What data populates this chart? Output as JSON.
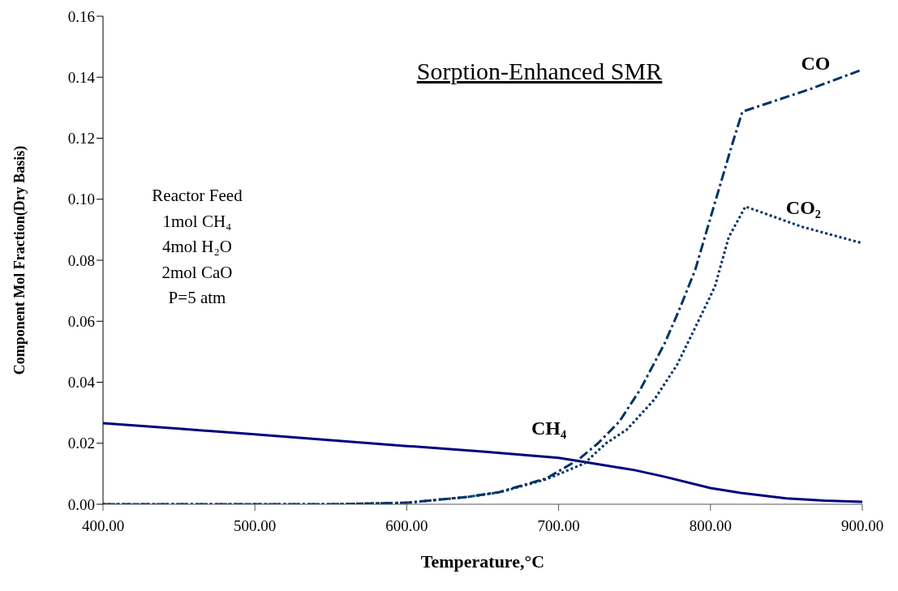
{
  "chart_data": {
    "type": "line",
    "title": "Sorption-Enhanced SMR",
    "xlabel": "Temperature,°C",
    "ylabel": "Component Mol Fraction(Dry Basis)",
    "annotations": [
      "Reactor Feed",
      "1mol CH₄",
      "4mol H₂O",
      "2mol CaO",
      "P=5 atm"
    ],
    "xlim": [
      400,
      900
    ],
    "xticks": [
      {
        "value": 400,
        "label": "400.00"
      },
      {
        "value": 500,
        "label": "500.00"
      },
      {
        "value": 600,
        "label": "600.00"
      },
      {
        "value": 700,
        "label": "700.00"
      },
      {
        "value": 800,
        "label": "800.00"
      },
      {
        "value": 900,
        "label": "900.00"
      }
    ],
    "ylim": [
      0,
      0.16
    ],
    "yticks": [
      {
        "value": 0,
        "label": "0.00"
      },
      {
        "value": 0.02,
        "label": "0.02"
      },
      {
        "value": 0.04,
        "label": "0.04"
      },
      {
        "value": 0.06,
        "label": "0.06"
      },
      {
        "value": 0.08,
        "label": "0.08"
      },
      {
        "value": 0.1,
        "label": "0.10"
      },
      {
        "value": 0.12,
        "label": "0.12"
      },
      {
        "value": 0.14,
        "label": "0.14"
      },
      {
        "value": 0.16,
        "label": "0.16"
      }
    ],
    "grid": false,
    "legend": false,
    "marker": "none",
    "series": [
      {
        "name": "CH₄",
        "color": "#00007f",
        "line_style": "solid",
        "x": [
          400,
          450,
          500,
          550,
          600,
          650,
          700,
          720,
          750,
          770,
          800,
          820,
          850,
          875,
          900
        ],
        "values": [
          0.0266,
          0.0248,
          0.0229,
          0.021,
          0.0191,
          0.0173,
          0.0152,
          0.0136,
          0.0112,
          0.009,
          0.0053,
          0.0037,
          0.0019,
          0.0012,
          0.0008
        ]
      },
      {
        "name": "CO",
        "color": "#003366",
        "line_style": "dashed",
        "x": [
          400,
          500,
          550,
          600,
          640,
          661,
          692,
          713,
          726,
          740,
          754,
          770,
          780,
          790,
          797,
          806,
          814,
          821,
          865,
          900
        ],
        "values": [
          0,
          0,
          0,
          0.0005,
          0.0024,
          0.004,
          0.0085,
          0.0146,
          0.02,
          0.0271,
          0.0378,
          0.0529,
          0.0644,
          0.0769,
          0.0888,
          0.104,
          0.1175,
          0.1287,
          0.136,
          0.1425
        ]
      },
      {
        "name": "CO₂",
        "color": "#003366",
        "line_style": "dotted",
        "x": [
          400,
          500,
          550,
          600,
          640,
          661,
          692,
          717,
          731,
          745,
          763,
          778,
          791,
          798,
          803,
          812,
          823,
          860,
          900
        ],
        "values": [
          0,
          0,
          0,
          0.0005,
          0.0024,
          0.0039,
          0.0082,
          0.0134,
          0.0199,
          0.0245,
          0.0343,
          0.0457,
          0.059,
          0.0662,
          0.0715,
          0.0875,
          0.0976,
          0.091,
          0.0856
        ]
      }
    ]
  }
}
